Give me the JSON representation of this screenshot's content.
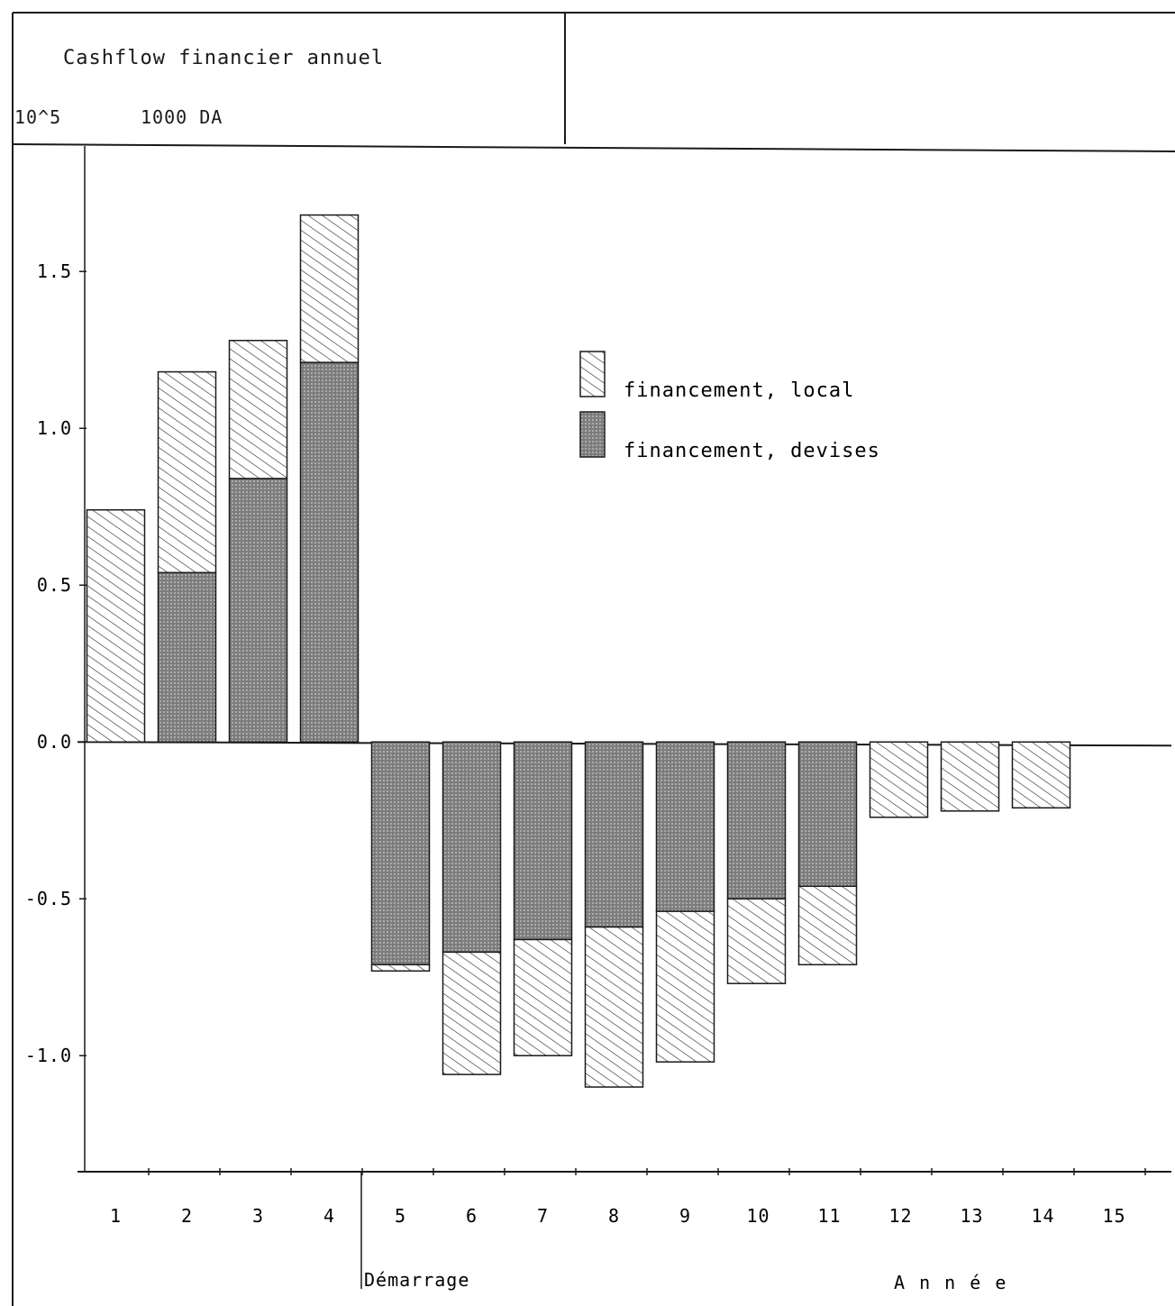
{
  "header": {
    "title": "Cashflow financier annuel",
    "unit_exponent": "10^5",
    "unit": "1000 DA"
  },
  "chart_data": {
    "type": "bar",
    "stacked": true,
    "title": "Cashflow financier annuel",
    "ylabel": "",
    "xlabel": "A n n é e",
    "annotation": "Démarrage",
    "categories": [
      "1",
      "2",
      "3",
      "4",
      "5",
      "6",
      "7",
      "8",
      "9",
      "10",
      "11",
      "12",
      "13",
      "14",
      "15"
    ],
    "ylim": [
      -1.37,
      1.9
    ],
    "yticks": [
      {
        "value": 1.5,
        "label": "1.5"
      },
      {
        "value": 1.0,
        "label": "1.0"
      },
      {
        "value": 0.5,
        "label": "0.5"
      },
      {
        "value": 0.0,
        "label": "0.0"
      },
      {
        "value": -0.5,
        "label": "-0.5"
      },
      {
        "value": -1.0,
        "label": "-1.0"
      }
    ],
    "series": [
      {
        "name": "financement, devises",
        "values": [
          0,
          0.54,
          0.84,
          1.21,
          -0.71,
          -0.67,
          -0.63,
          -0.59,
          -0.54,
          -0.5,
          -0.46,
          0,
          0,
          0,
          0
        ]
      },
      {
        "name": "financement, local",
        "values": [
          0.74,
          0.64,
          0.44,
          0.47,
          -0.02,
          -0.39,
          -0.37,
          -0.51,
          -0.48,
          -0.27,
          -0.25,
          -0.24,
          -0.22,
          -0.21,
          0
        ]
      }
    ],
    "legend_position": "upper-center-right",
    "colors": {
      "ink": "#1a1a1a",
      "devises_fill": "#8c8c8c"
    }
  }
}
